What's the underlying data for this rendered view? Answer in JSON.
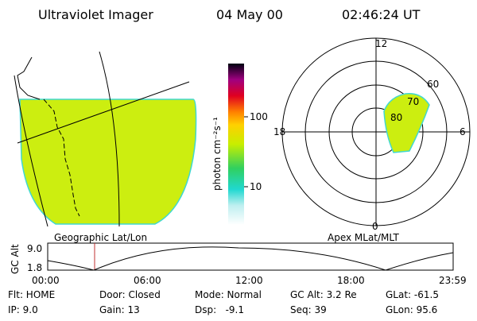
{
  "header": {
    "instrument": "Ultraviolet Imager",
    "date": "04 May 00",
    "time": "02:46:24 UT"
  },
  "colorbar": {
    "label": "photon cm⁻²s⁻¹",
    "ticks": [
      "100",
      "10"
    ]
  },
  "left_panel": {
    "caption": "Geographic Lat/Lon"
  },
  "right_panel": {
    "caption": "Apex MLat/MLT",
    "mlt_labels": [
      "12",
      "18",
      "6",
      "0"
    ],
    "lat_labels": [
      "60",
      "70",
      "80"
    ]
  },
  "altitude_plot": {
    "axis_label": "GC Alt",
    "y_labels": [
      "9.0",
      "1.8"
    ],
    "x_labels": [
      "00:00",
      "06:00",
      "12:00",
      "18:00",
      "23:59"
    ]
  },
  "footer": {
    "rows": [
      [
        "Flt: HOME",
        "Door: Closed",
        "Mode: Normal",
        "GC Alt: 3.2 Re",
        "GLat: -61.5"
      ],
      [
        "IP: 9.0",
        "Gain: 13",
        "Dsp:   -9.1",
        "Seq: 39",
        "GLon: 95.6"
      ]
    ]
  }
}
